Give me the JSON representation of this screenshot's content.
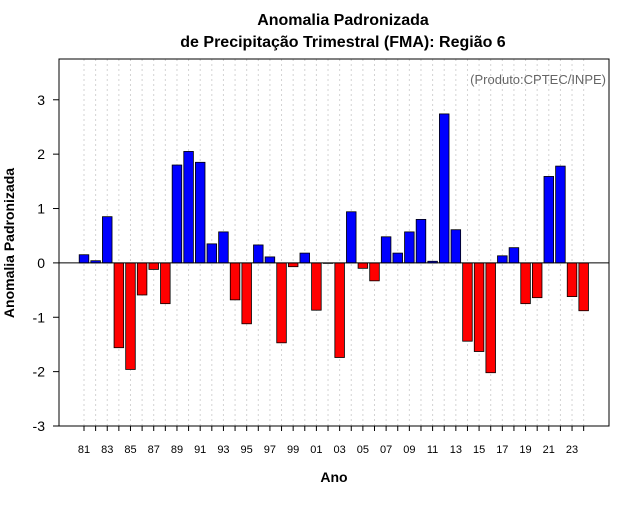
{
  "chart_data": {
    "type": "bar",
    "title_line1": "Anomalia Padronizada",
    "title_line2": "de Precipitação Trimestral (FMA): Região 6",
    "xlabel": "Ano",
    "ylabel": "Anomalia Padronizada",
    "source": "(Produto:CPTEC/INPE)",
    "ylim": [
      -3,
      3.75
    ],
    "yticks": [
      3,
      2,
      1,
      0,
      -1,
      -2,
      -3
    ],
    "categories": [
      "81",
      "82",
      "83",
      "84",
      "85",
      "86",
      "87",
      "88",
      "89",
      "90",
      "91",
      "92",
      "93",
      "94",
      "95",
      "96",
      "97",
      "98",
      "99",
      "00",
      "01",
      "02",
      "03",
      "04",
      "05",
      "06",
      "07",
      "08",
      "09",
      "10",
      "11",
      "12",
      "13",
      "14",
      "15",
      "16",
      "17",
      "18",
      "19",
      "20",
      "21",
      "22",
      "23",
      "24"
    ],
    "xtick_labels": [
      "81",
      "83",
      "85",
      "87",
      "89",
      "91",
      "93",
      "95",
      "97",
      "99",
      "01",
      "03",
      "05",
      "07",
      "09",
      "11",
      "13",
      "15",
      "17",
      "19",
      "21",
      "23"
    ],
    "values": [
      0.15,
      0.04,
      0.85,
      -1.56,
      -1.96,
      -0.59,
      -0.12,
      -0.75,
      1.8,
      2.05,
      1.85,
      0.35,
      0.57,
      -0.68,
      -1.12,
      0.33,
      0.11,
      -1.47,
      -0.07,
      0.18,
      -0.87,
      0.0,
      -1.74,
      0.94,
      -0.1,
      -0.33,
      0.48,
      0.18,
      0.57,
      0.8,
      0.03,
      2.74,
      0.61,
      -1.44,
      -1.63,
      -2.02,
      0.13,
      0.28,
      -0.75,
      -0.64,
      1.59,
      1.78,
      -0.62,
      -0.88
    ],
    "colors": {
      "positive": "#0000ff",
      "negative": "#ff0000",
      "outline": "#000000",
      "grid": "#d3d3d3"
    },
    "grid": true
  }
}
